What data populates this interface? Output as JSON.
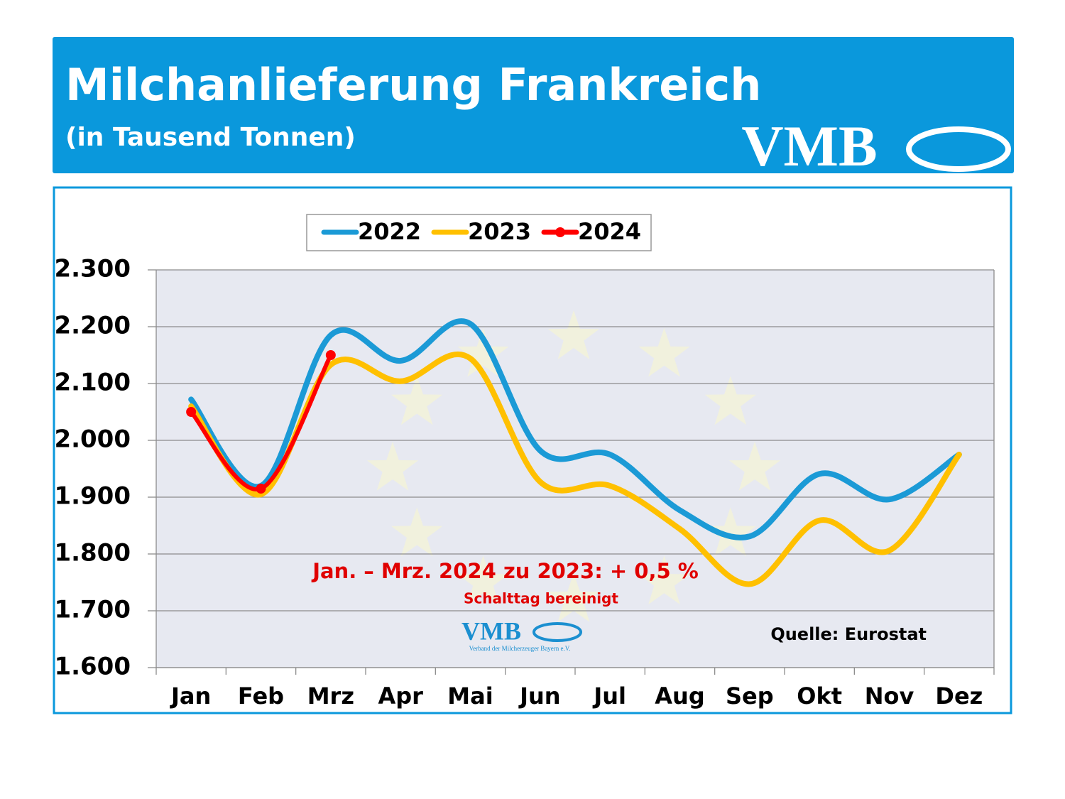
{
  "chart_data": {
    "type": "line",
    "title": "Milchanlieferung Frankreich",
    "subtitle": "(in Tausend Tonnen)",
    "logo": "VMB",
    "categories": [
      "Jan",
      "Feb",
      "Mrz",
      "Apr",
      "Mai",
      "Jun",
      "Jul",
      "Aug",
      "Sep",
      "Okt",
      "Nov",
      "Dez"
    ],
    "series": [
      {
        "name": "2022",
        "color": "#1b9ad6",
        "values": [
          2072,
          1920,
          2185,
          2140,
          2205,
          1982,
          1975,
          1877,
          1831,
          1941,
          1896,
          1975
        ]
      },
      {
        "name": "2023",
        "color": "#ffc000",
        "values": [
          2060,
          1905,
          2133,
          2104,
          2144,
          1927,
          1920,
          1844,
          1747,
          1859,
          1806,
          1975
        ]
      },
      {
        "name": "2024",
        "color": "#ff0000",
        "markers": true,
        "values": [
          2050,
          1915,
          2150,
          null,
          null,
          null,
          null,
          null,
          null,
          null,
          null,
          null
        ]
      }
    ],
    "ylim": [
      1600,
      2300
    ],
    "yticks": [
      {
        "value": 1600,
        "label": "1.600"
      },
      {
        "value": 1700,
        "label": "1.700"
      },
      {
        "value": 1800,
        "label": "1.800"
      },
      {
        "value": 1900,
        "label": "1.900"
      },
      {
        "value": 2000,
        "label": "2.000"
      },
      {
        "value": 2100,
        "label": "2.100"
      },
      {
        "value": 2200,
        "label": "2.200"
      },
      {
        "value": 2300,
        "label": "2.300"
      }
    ],
    "grid": true,
    "legend": "top",
    "annotation": "Jan. – Mrz. 2024 zu 2023:  + 0,5 %",
    "annotation_note": "Schalttag bereinigt",
    "source": "Quelle: Eurostat",
    "small_logo": "VMB",
    "small_logo_text": "Verband der Milcherzeuger Bayern e.V."
  }
}
